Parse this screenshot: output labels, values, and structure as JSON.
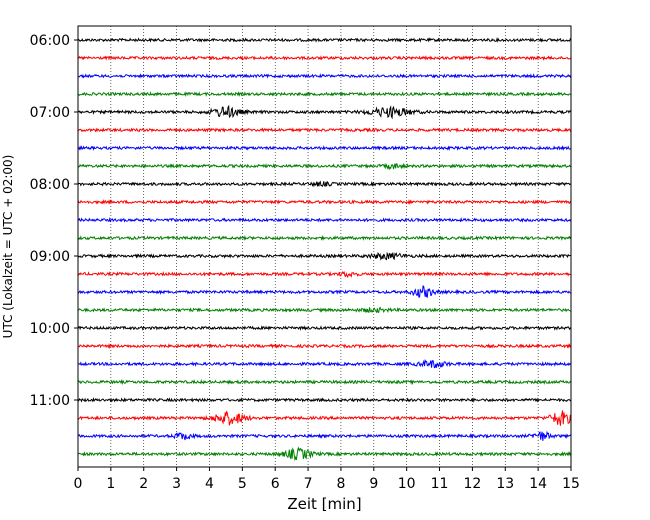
{
  "chart_data": {
    "type": "line",
    "title": "",
    "xlabel": "Zeit  [min]",
    "ylabel": "UTC (Lokalzeit = UTC + 02:00)",
    "xlim": [
      0,
      15
    ],
    "xticks": [
      0,
      1,
      2,
      3,
      4,
      5,
      6,
      7,
      8,
      9,
      10,
      11,
      12,
      13,
      14,
      15
    ],
    "grid": "vertical dotted",
    "y_tick_labels": [
      "06:00",
      "07:00",
      "08:00",
      "09:00",
      "10:00",
      "11:00"
    ],
    "trace_interval_min": 15,
    "color_cycle": [
      "#000000",
      "#ff0000",
      "#0000ff",
      "#008000"
    ],
    "traces": [
      {
        "start": "06:00",
        "color": "#000000",
        "events": []
      },
      {
        "start": "06:15",
        "color": "#ff0000",
        "events": []
      },
      {
        "start": "06:30",
        "color": "#0000ff",
        "events": []
      },
      {
        "start": "06:45",
        "color": "#008000",
        "events": []
      },
      {
        "start": "07:00",
        "color": "#000000",
        "events": [
          {
            "t": 4.5,
            "amp": 5,
            "width": 0.8
          },
          {
            "t": 9.5,
            "amp": 4.5,
            "width": 1.2
          }
        ]
      },
      {
        "start": "07:15",
        "color": "#ff0000",
        "events": []
      },
      {
        "start": "07:30",
        "color": "#0000ff",
        "events": []
      },
      {
        "start": "07:45",
        "color": "#008000",
        "events": [
          {
            "t": 9.6,
            "amp": 2,
            "width": 0.5
          }
        ]
      },
      {
        "start": "08:00",
        "color": "#000000",
        "events": [
          {
            "t": 7.4,
            "amp": 1.5,
            "width": 0.6
          }
        ]
      },
      {
        "start": "08:15",
        "color": "#ff0000",
        "events": []
      },
      {
        "start": "08:30",
        "color": "#0000ff",
        "events": []
      },
      {
        "start": "08:45",
        "color": "#008000",
        "events": []
      },
      {
        "start": "09:00",
        "color": "#000000",
        "events": [
          {
            "t": 9.4,
            "amp": 2.5,
            "width": 1.0
          }
        ]
      },
      {
        "start": "09:15",
        "color": "#ff0000",
        "events": [
          {
            "t": 8.2,
            "amp": 2,
            "width": 0.5
          }
        ]
      },
      {
        "start": "09:30",
        "color": "#0000ff",
        "events": [
          {
            "t": 10.5,
            "amp": 5,
            "width": 0.6
          }
        ]
      },
      {
        "start": "09:45",
        "color": "#008000",
        "events": [
          {
            "t": 9.0,
            "amp": 1.5,
            "width": 0.8
          }
        ]
      },
      {
        "start": "10:00",
        "color": "#000000",
        "events": []
      },
      {
        "start": "10:15",
        "color": "#ff0000",
        "events": []
      },
      {
        "start": "10:30",
        "color": "#0000ff",
        "events": [
          {
            "t": 10.8,
            "amp": 3,
            "width": 0.8
          }
        ]
      },
      {
        "start": "10:45",
        "color": "#008000",
        "events": []
      },
      {
        "start": "11:00",
        "color": "#000000",
        "events": []
      },
      {
        "start": "11:15",
        "color": "#ff0000",
        "events": [
          {
            "t": 4.6,
            "amp": 6,
            "width": 0.9
          },
          {
            "t": 14.7,
            "amp": 7,
            "width": 0.6
          }
        ]
      },
      {
        "start": "11:30",
        "color": "#0000ff",
        "events": [
          {
            "t": 3.2,
            "amp": 3,
            "width": 0.5
          },
          {
            "t": 14.1,
            "amp": 4,
            "width": 0.5
          }
        ]
      },
      {
        "start": "11:45",
        "color": "#008000",
        "events": [
          {
            "t": 6.7,
            "amp": 5,
            "width": 0.8
          }
        ]
      }
    ]
  }
}
